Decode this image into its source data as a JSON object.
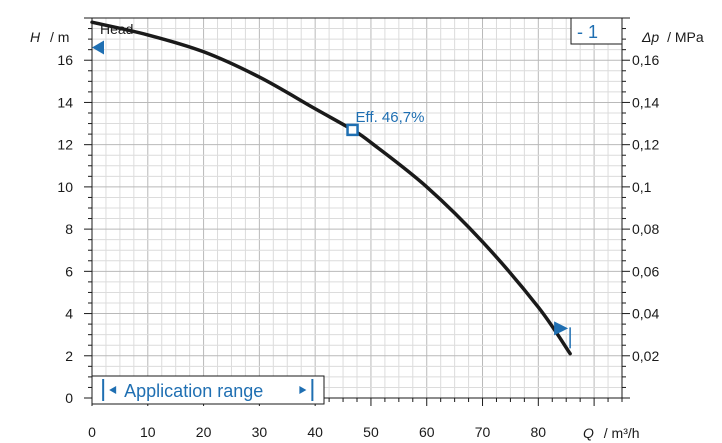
{
  "chart_data": {
    "type": "line",
    "title": "Head",
    "curve_label": "- 1",
    "xlabel_symbol": "Q",
    "xlabel_unit": "/ m³/h",
    "ylabel_symbol": "H",
    "ylabel_unit": "/ m",
    "y2label_symbol": "Δp",
    "y2label_unit": "/ MPa",
    "xlim": [
      0,
      95
    ],
    "ylim": [
      0,
      18
    ],
    "y2lim": [
      0,
      0.18
    ],
    "x_ticks": [
      "0",
      "10",
      "20",
      "30",
      "40",
      "50",
      "60",
      "70",
      "80"
    ],
    "x_tick_values": [
      0,
      10,
      20,
      30,
      40,
      50,
      60,
      70,
      80
    ],
    "y_ticks": [
      "0",
      "2",
      "4",
      "6",
      "8",
      "10",
      "12",
      "14",
      "16"
    ],
    "y_tick_values": [
      0,
      2,
      4,
      6,
      8,
      10,
      12,
      14,
      16
    ],
    "y2_ticks": [
      "0,02",
      "0,04",
      "0,06",
      "0,08",
      "0,1",
      "0,12",
      "0,14",
      "0,16"
    ],
    "y2_tick_values": [
      0.02,
      0.04,
      0.06,
      0.08,
      0.1,
      0.12,
      0.14,
      0.16
    ],
    "grid": true,
    "series": [
      {
        "x": [
          0,
          10,
          20,
          30,
          40,
          46.7,
          50,
          60,
          70,
          80,
          85.7
        ],
        "y": [
          17.8,
          17.2,
          16.4,
          15.2,
          13.7,
          12.7,
          12.1,
          10.0,
          7.4,
          4.3,
          2.1
        ],
        "color": "#1a1a1a"
      }
    ],
    "duty_point": {
      "x": 46.7,
      "y": 12.7,
      "label": "Eff.  46,7%"
    },
    "shutoff_marker": {
      "y": 16.6
    },
    "end_marker": {
      "x": 85.7,
      "y": 3.3
    },
    "application_range": {
      "label": "Application range",
      "x_start": 2,
      "x_end": 39.5
    },
    "colors": {
      "curve": "#1a1a1a",
      "accent": "#1f6fb2",
      "grid_minor": "#dcdcdc",
      "grid_major": "#b9b9b9"
    }
  }
}
